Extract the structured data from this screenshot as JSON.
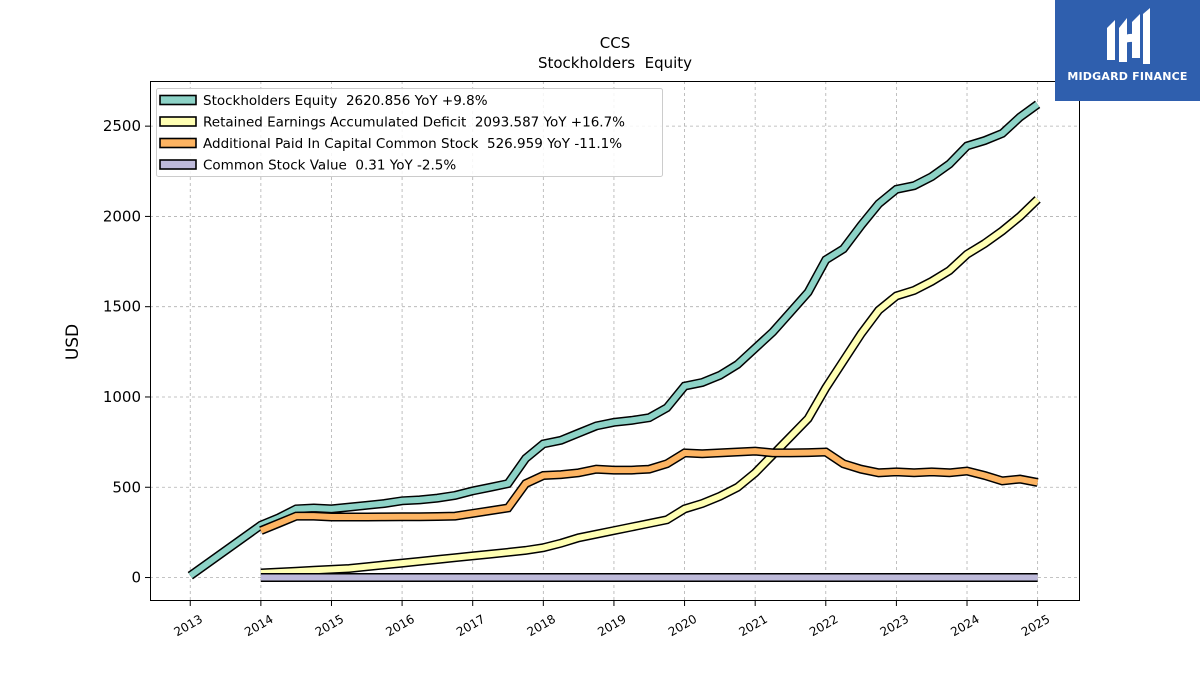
{
  "brand": {
    "name": "MIDGARD FINANCE",
    "bg_color": "#2f5fae"
  },
  "chart_data": {
    "type": "line",
    "title": "CCS",
    "subtitle": "Stockholders  Equity",
    "xlabel": "",
    "ylabel": "USD",
    "ylim": [
      -130,
      2750
    ],
    "xlim": [
      2012.43,
      2025.6
    ],
    "x_ticks": [
      2013,
      2014,
      2015,
      2016,
      2017,
      2018,
      2019,
      2020,
      2021,
      2022,
      2023,
      2024,
      2025
    ],
    "x_tick_labels": [
      "2013",
      "2014",
      "2015",
      "2016",
      "2017",
      "2018",
      "2019",
      "2020",
      "2021",
      "2022",
      "2023",
      "2024",
      "2025"
    ],
    "y_ticks": [
      0,
      500,
      1000,
      1500,
      2000,
      2500
    ],
    "y_tick_labels": [
      "0",
      "500",
      "1000",
      "1500",
      "2000",
      "2500"
    ],
    "grid": true,
    "legend_position": "top-left",
    "series": [
      {
        "name": "Stockholders Equity",
        "legend_label": "Stockholders Equity  2620.856 YoY +9.8%",
        "color": "#8dd3c7",
        "x": [
          2013.0,
          2014.0,
          2014.25,
          2014.5,
          2014.75,
          2015.0,
          2015.25,
          2015.5,
          2015.75,
          2016.0,
          2016.25,
          2016.5,
          2016.75,
          2017.0,
          2017.25,
          2017.5,
          2017.75,
          2018.0,
          2018.25,
          2018.5,
          2018.75,
          2019.0,
          2019.25,
          2019.5,
          2019.75,
          2020.0,
          2020.25,
          2020.5,
          2020.75,
          2021.0,
          2021.25,
          2021.5,
          2021.75,
          2022.0,
          2022.25,
          2022.5,
          2022.75,
          2023.0,
          2023.25,
          2023.5,
          2023.75,
          2024.0,
          2024.25,
          2024.5,
          2024.75,
          2025.0
        ],
        "y": [
          10,
          290,
          330,
          380,
          385,
          380,
          390,
          400,
          410,
          425,
          430,
          440,
          455,
          480,
          500,
          520,
          660,
          740,
          760,
          800,
          840,
          860,
          870,
          885,
          940,
          1060,
          1080,
          1120,
          1180,
          1270,
          1360,
          1470,
          1580,
          1760,
          1820,
          1950,
          2070,
          2150,
          2170,
          2220,
          2290,
          2390,
          2420,
          2460,
          2550,
          2621
        ]
      },
      {
        "name": "Retained Earnings Accumulated Deficit",
        "legend_label": "Retained Earnings Accumulated Deficit  2093.587 YoY +16.7%",
        "color": "#ffffb3",
        "x": [
          2014.0,
          2014.25,
          2014.5,
          2014.75,
          2015.0,
          2015.25,
          2015.5,
          2015.75,
          2016.0,
          2016.25,
          2016.5,
          2016.75,
          2017.0,
          2017.25,
          2017.5,
          2017.75,
          2018.0,
          2018.25,
          2018.5,
          2018.75,
          2019.0,
          2019.25,
          2019.5,
          2019.75,
          2020.0,
          2020.25,
          2020.5,
          2020.75,
          2021.0,
          2021.25,
          2021.5,
          2021.75,
          2022.0,
          2022.25,
          2022.5,
          2022.75,
          2023.0,
          2023.25,
          2023.5,
          2023.75,
          2024.0,
          2024.25,
          2024.5,
          2024.75,
          2025.0
        ],
        "y": [
          25,
          30,
          35,
          40,
          45,
          50,
          60,
          70,
          80,
          90,
          100,
          110,
          120,
          130,
          140,
          150,
          165,
          190,
          220,
          240,
          260,
          280,
          300,
          320,
          380,
          410,
          450,
          500,
          580,
          680,
          780,
          880,
          1050,
          1200,
          1350,
          1480,
          1560,
          1590,
          1640,
          1700,
          1790,
          1850,
          1920,
          2000,
          2094
        ]
      },
      {
        "name": "Additional Paid In Capital Common Stock",
        "legend_label": "Additional Paid In Capital Common Stock  526.959 YoY -11.1%",
        "color": "#fdb462",
        "x": [
          2014.0,
          2014.25,
          2014.5,
          2014.75,
          2015.0,
          2015.25,
          2015.5,
          2015.75,
          2016.0,
          2016.25,
          2016.5,
          2016.75,
          2017.0,
          2017.25,
          2017.5,
          2017.75,
          2018.0,
          2018.25,
          2018.5,
          2018.75,
          2019.0,
          2019.25,
          2019.5,
          2019.75,
          2020.0,
          2020.25,
          2020.5,
          2020.75,
          2021.0,
          2021.25,
          2021.5,
          2021.75,
          2022.0,
          2022.25,
          2022.5,
          2022.75,
          2023.0,
          2023.25,
          2023.5,
          2023.75,
          2024.0,
          2024.25,
          2024.5,
          2024.75,
          2025.0
        ],
        "y": [
          260,
          300,
          340,
          340,
          335,
          335,
          335,
          336,
          337,
          337,
          338,
          340,
          355,
          370,
          385,
          520,
          565,
          570,
          580,
          600,
          595,
          595,
          600,
          630,
          690,
          685,
          690,
          695,
          700,
          690,
          690,
          692,
          695,
          630,
          600,
          580,
          585,
          580,
          585,
          580,
          590,
          565,
          535,
          545,
          527
        ]
      },
      {
        "name": "Common Stock Value",
        "legend_label": "Common Stock Value  0.31 YoY -2.5%",
        "color": "#bebada",
        "x": [
          2014.0,
          2025.0
        ],
        "y": [
          0.32,
          0.31
        ]
      }
    ]
  }
}
